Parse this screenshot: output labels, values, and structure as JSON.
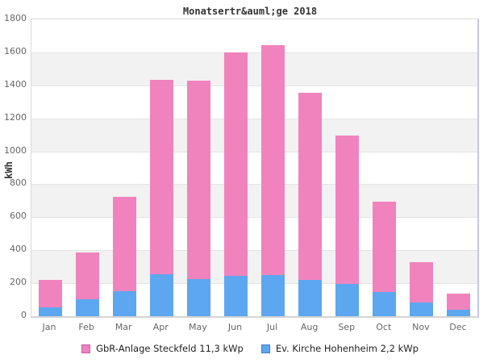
{
  "title": "Monatsertr&auml;ge 2018",
  "chart_data": {
    "type": "bar",
    "stacked": true,
    "title": "Monatsertr&auml;ge 2018",
    "ylabel": "kWh",
    "ylim": [
      0,
      1800
    ],
    "yticks": [
      0,
      200,
      400,
      600,
      800,
      1000,
      1200,
      1400,
      1600,
      1800
    ],
    "grid": "horizontal, alternating shaded bands every 200",
    "legend_position": "bottom-center",
    "categories": [
      "Jan",
      "Feb",
      "Mar",
      "Apr",
      "May",
      "Jun",
      "Jul",
      "Aug",
      "Sep",
      "Oct",
      "Nov",
      "Dec"
    ],
    "series": [
      {
        "name": "GbR-Anlage Steckfeld 11,3 kWp",
        "color": "#f083bd",
        "border_color": "#c75f9e",
        "stack_position": "top",
        "values": [
          165,
          280,
          575,
          1180,
          1205,
          1355,
          1395,
          1135,
          900,
          550,
          245,
          95
        ]
      },
      {
        "name": "Ev. Kirche Hohenheim 2,2 kWp",
        "color": "#5ca7f0",
        "border_color": "#477fc4",
        "stack_position": "bottom",
        "values": [
          55,
          105,
          150,
          255,
          225,
          245,
          250,
          220,
          195,
          145,
          85,
          40
        ]
      }
    ],
    "totals": [
      220,
      385,
      725,
      1435,
      1430,
      1600,
      1645,
      1355,
      1095,
      695,
      330,
      135
    ]
  },
  "style": {
    "band_gray": "#f2f2f2",
    "band_white": "#ffffff",
    "gridline_color": "#e3e3e3",
    "plot_border_color": "#d9d9d9",
    "plot_right_border_color": "#c6c6e8",
    "tick_text_color": "#666666",
    "title_text_color": "#333333"
  }
}
